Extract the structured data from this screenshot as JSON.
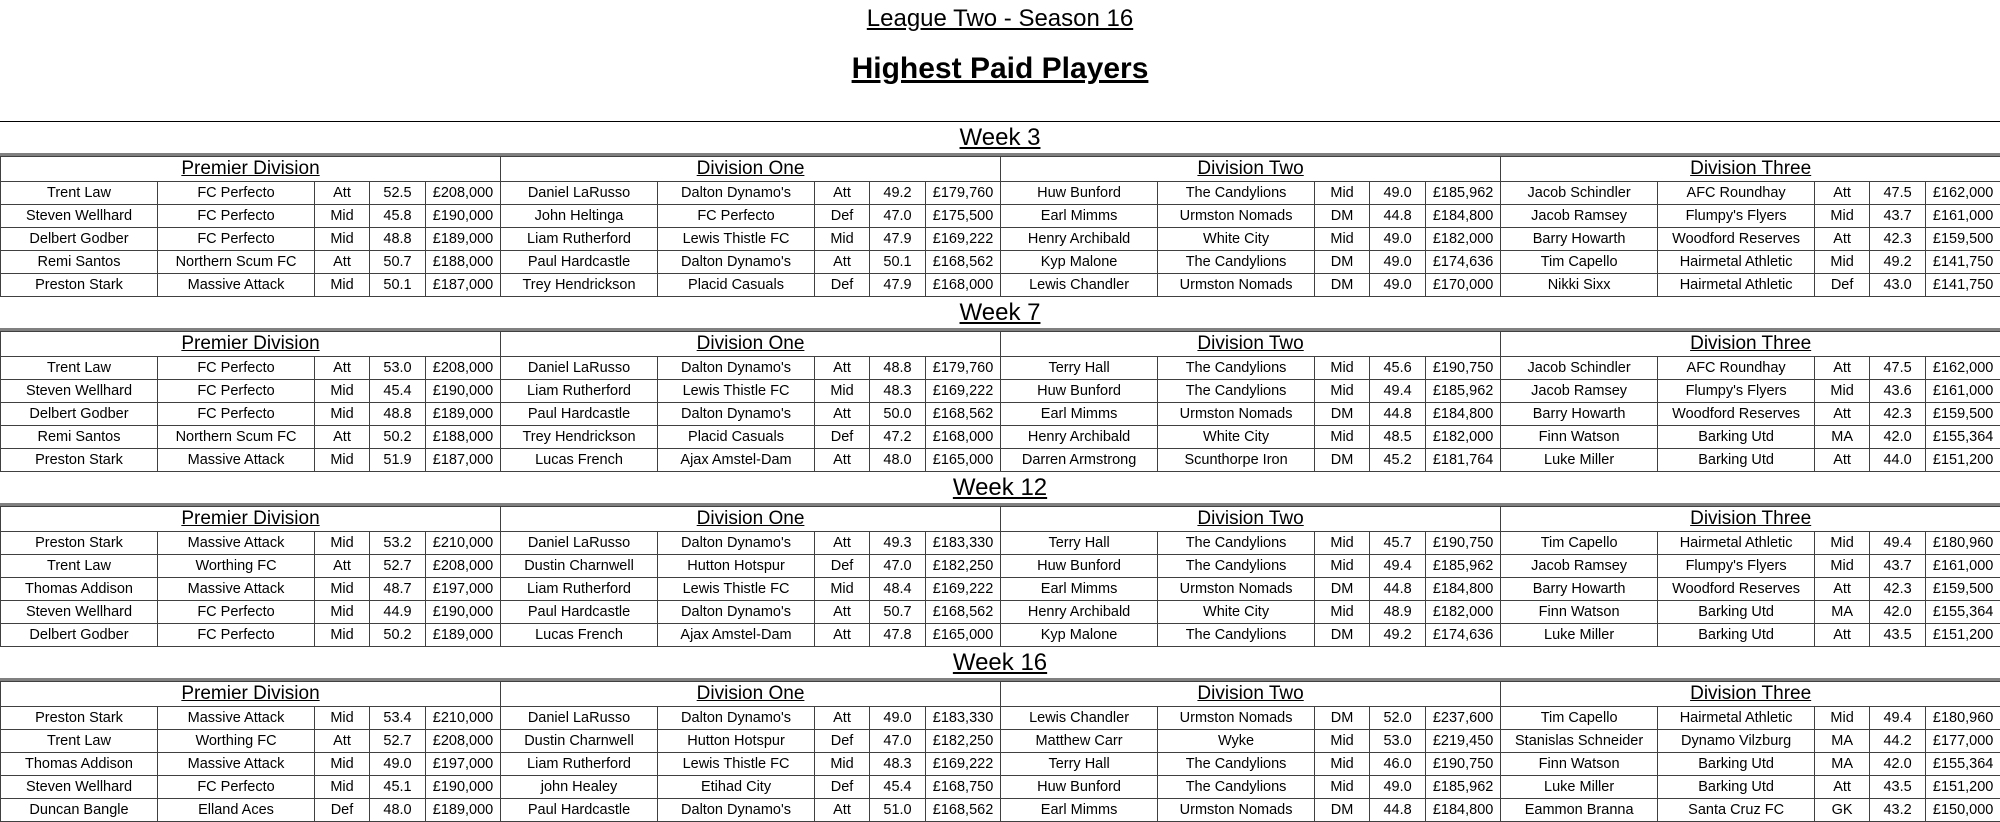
{
  "titles": {
    "league": "League Two - Season 16",
    "page": "Highest Paid Players"
  },
  "colors": {
    "background": "#ffffff",
    "text": "#000000",
    "grid_line": "#404040",
    "week_divider": "#808080"
  },
  "weeks": [
    {
      "label": "Week 3",
      "divisions": [
        {
          "name": "Premier Division",
          "rows": [
            {
              "player": "Trent Law",
              "club": "FC Perfecto",
              "position": "Att",
              "rating": "52.5",
              "wage": "£208,000"
            },
            {
              "player": "Steven Wellhard",
              "club": "FC Perfecto",
              "position": "Mid",
              "rating": "45.8",
              "wage": "£190,000"
            },
            {
              "player": "Delbert Godber",
              "club": "FC Perfecto",
              "position": "Mid",
              "rating": "48.8",
              "wage": "£189,000"
            },
            {
              "player": "Remi Santos",
              "club": "Northern Scum FC",
              "position": "Att",
              "rating": "50.7",
              "wage": "£188,000"
            },
            {
              "player": "Preston Stark",
              "club": "Massive Attack",
              "position": "Mid",
              "rating": "50.1",
              "wage": "£187,000"
            }
          ]
        },
        {
          "name": "Division One",
          "rows": [
            {
              "player": "Daniel LaRusso",
              "club": "Dalton Dynamo's",
              "position": "Att",
              "rating": "49.2",
              "wage": "£179,760"
            },
            {
              "player": "John Heltinga",
              "club": "FC Perfecto",
              "position": "Def",
              "rating": "47.0",
              "wage": "£175,500"
            },
            {
              "player": "Liam Rutherford",
              "club": "Lewis Thistle FC",
              "position": "Mid",
              "rating": "47.9",
              "wage": "£169,222"
            },
            {
              "player": "Paul Hardcastle",
              "club": "Dalton Dynamo's",
              "position": "Att",
              "rating": "50.1",
              "wage": "£168,562"
            },
            {
              "player": "Trey Hendrickson",
              "club": "Placid Casuals",
              "position": "Def",
              "rating": "47.9",
              "wage": "£168,000"
            }
          ]
        },
        {
          "name": "Division Two",
          "rows": [
            {
              "player": "Huw Bunford",
              "club": "The Candylions",
              "position": "Mid",
              "rating": "49.0",
              "wage": "£185,962"
            },
            {
              "player": "Earl Mimms",
              "club": "Urmston Nomads",
              "position": "DM",
              "rating": "44.8",
              "wage": "£184,800"
            },
            {
              "player": "Henry Archibald",
              "club": "White City",
              "position": "Mid",
              "rating": "49.0",
              "wage": "£182,000"
            },
            {
              "player": "Kyp Malone",
              "club": "The Candylions",
              "position": "DM",
              "rating": "49.0",
              "wage": "£174,636"
            },
            {
              "player": "Lewis Chandler",
              "club": "Urmston Nomads",
              "position": "DM",
              "rating": "49.0",
              "wage": "£170,000"
            }
          ]
        },
        {
          "name": "Division Three",
          "rows": [
            {
              "player": "Jacob Schindler",
              "club": "AFC Roundhay",
              "position": "Att",
              "rating": "47.5",
              "wage": "£162,000"
            },
            {
              "player": "Jacob Ramsey",
              "club": "Flumpy's Flyers",
              "position": "Mid",
              "rating": "43.7",
              "wage": "£161,000"
            },
            {
              "player": "Barry Howarth",
              "club": "Woodford Reserves",
              "position": "Att",
              "rating": "42.3",
              "wage": "£159,500"
            },
            {
              "player": "Tim Capello",
              "club": "Hairmetal Athletic",
              "position": "Mid",
              "rating": "49.2",
              "wage": "£141,750"
            },
            {
              "player": "Nikki Sixx",
              "club": "Hairmetal Athletic",
              "position": "Def",
              "rating": "43.0",
              "wage": "£141,750"
            }
          ]
        }
      ]
    },
    {
      "label": "Week 7",
      "divisions": [
        {
          "name": "Premier Division",
          "rows": [
            {
              "player": "Trent Law",
              "club": "FC Perfecto",
              "position": "Att",
              "rating": "53.0",
              "wage": "£208,000"
            },
            {
              "player": "Steven Wellhard",
              "club": "FC Perfecto",
              "position": "Mid",
              "rating": "45.4",
              "wage": "£190,000"
            },
            {
              "player": "Delbert Godber",
              "club": "FC Perfecto",
              "position": "Mid",
              "rating": "48.8",
              "wage": "£189,000"
            },
            {
              "player": "Remi Santos",
              "club": "Northern Scum FC",
              "position": "Att",
              "rating": "50.2",
              "wage": "£188,000"
            },
            {
              "player": "Preston Stark",
              "club": "Massive Attack",
              "position": "Mid",
              "rating": "51.9",
              "wage": "£187,000"
            }
          ]
        },
        {
          "name": "Division One",
          "rows": [
            {
              "player": "Daniel LaRusso",
              "club": "Dalton Dynamo's",
              "position": "Att",
              "rating": "48.8",
              "wage": "£179,760"
            },
            {
              "player": "Liam Rutherford",
              "club": "Lewis Thistle FC",
              "position": "Mid",
              "rating": "48.3",
              "wage": "£169,222"
            },
            {
              "player": "Paul Hardcastle",
              "club": "Dalton Dynamo's",
              "position": "Att",
              "rating": "50.0",
              "wage": "£168,562"
            },
            {
              "player": "Trey Hendrickson",
              "club": "Placid Casuals",
              "position": "Def",
              "rating": "47.2",
              "wage": "£168,000"
            },
            {
              "player": "Lucas French",
              "club": "Ajax Amstel-Dam",
              "position": "Att",
              "rating": "48.0",
              "wage": "£165,000"
            }
          ]
        },
        {
          "name": "Division Two",
          "rows": [
            {
              "player": "Terry Hall",
              "club": "The Candylions",
              "position": "Mid",
              "rating": "45.6",
              "wage": "£190,750"
            },
            {
              "player": "Huw Bunford",
              "club": "The Candylions",
              "position": "Mid",
              "rating": "49.4",
              "wage": "£185,962"
            },
            {
              "player": "Earl Mimms",
              "club": "Urmston Nomads",
              "position": "DM",
              "rating": "44.8",
              "wage": "£184,800"
            },
            {
              "player": "Henry Archibald",
              "club": "White City",
              "position": "Mid",
              "rating": "48.5",
              "wage": "£182,000"
            },
            {
              "player": "Darren Armstrong",
              "club": "Scunthorpe Iron",
              "position": "DM",
              "rating": "45.2",
              "wage": "£181,764"
            }
          ]
        },
        {
          "name": "Division Three",
          "rows": [
            {
              "player": "Jacob Schindler",
              "club": "AFC Roundhay",
              "position": "Att",
              "rating": "47.5",
              "wage": "£162,000"
            },
            {
              "player": "Jacob Ramsey",
              "club": "Flumpy's Flyers",
              "position": "Mid",
              "rating": "43.6",
              "wage": "£161,000"
            },
            {
              "player": "Barry Howarth",
              "club": "Woodford Reserves",
              "position": "Att",
              "rating": "42.3",
              "wage": "£159,500"
            },
            {
              "player": "Finn Watson",
              "club": "Barking Utd",
              "position": "MA",
              "rating": "42.0",
              "wage": "£155,364"
            },
            {
              "player": "Luke Miller",
              "club": "Barking Utd",
              "position": "Att",
              "rating": "44.0",
              "wage": "£151,200"
            }
          ]
        }
      ]
    },
    {
      "label": "Week 12",
      "divisions": [
        {
          "name": "Premier Division",
          "rows": [
            {
              "player": "Preston Stark",
              "club": "Massive Attack",
              "position": "Mid",
              "rating": "53.2",
              "wage": "£210,000"
            },
            {
              "player": "Trent Law",
              "club": "Worthing FC",
              "position": "Att",
              "rating": "52.7",
              "wage": "£208,000"
            },
            {
              "player": "Thomas Addison",
              "club": "Massive Attack",
              "position": "Mid",
              "rating": "48.7",
              "wage": "£197,000"
            },
            {
              "player": "Steven Wellhard",
              "club": "FC Perfecto",
              "position": "Mid",
              "rating": "44.9",
              "wage": "£190,000"
            },
            {
              "player": "Delbert Godber",
              "club": "FC Perfecto",
              "position": "Mid",
              "rating": "50.2",
              "wage": "£189,000"
            }
          ]
        },
        {
          "name": "Division One",
          "rows": [
            {
              "player": "Daniel LaRusso",
              "club": "Dalton Dynamo's",
              "position": "Att",
              "rating": "49.3",
              "wage": "£183,330"
            },
            {
              "player": "Dustin Charnwell",
              "club": "Hutton Hotspur",
              "position": "Def",
              "rating": "47.0",
              "wage": "£182,250"
            },
            {
              "player": "Liam Rutherford",
              "club": "Lewis Thistle FC",
              "position": "Mid",
              "rating": "48.4",
              "wage": "£169,222"
            },
            {
              "player": "Paul Hardcastle",
              "club": "Dalton Dynamo's",
              "position": "Att",
              "rating": "50.7",
              "wage": "£168,562"
            },
            {
              "player": "Lucas French",
              "club": "Ajax Amstel-Dam",
              "position": "Att",
              "rating": "47.8",
              "wage": "£165,000"
            }
          ]
        },
        {
          "name": "Division Two",
          "rows": [
            {
              "player": "Terry Hall",
              "club": "The Candylions",
              "position": "Mid",
              "rating": "45.7",
              "wage": "£190,750"
            },
            {
              "player": "Huw Bunford",
              "club": "The Candylions",
              "position": "Mid",
              "rating": "49.4",
              "wage": "£185,962"
            },
            {
              "player": "Earl Mimms",
              "club": "Urmston Nomads",
              "position": "DM",
              "rating": "44.8",
              "wage": "£184,800"
            },
            {
              "player": "Henry Archibald",
              "club": "White City",
              "position": "Mid",
              "rating": "48.9",
              "wage": "£182,000"
            },
            {
              "player": "Kyp Malone",
              "club": "The Candylions",
              "position": "DM",
              "rating": "49.2",
              "wage": "£174,636"
            }
          ]
        },
        {
          "name": "Division Three",
          "rows": [
            {
              "player": "Tim Capello",
              "club": "Hairmetal Athletic",
              "position": "Mid",
              "rating": "49.4",
              "wage": "£180,960"
            },
            {
              "player": "Jacob Ramsey",
              "club": "Flumpy's Flyers",
              "position": "Mid",
              "rating": "43.7",
              "wage": "£161,000"
            },
            {
              "player": "Barry Howarth",
              "club": "Woodford Reserves",
              "position": "Att",
              "rating": "42.3",
              "wage": "£159,500"
            },
            {
              "player": "Finn Watson",
              "club": "Barking Utd",
              "position": "MA",
              "rating": "42.0",
              "wage": "£155,364"
            },
            {
              "player": "Luke Miller",
              "club": "Barking Utd",
              "position": "Att",
              "rating": "43.5",
              "wage": "£151,200"
            }
          ]
        }
      ]
    },
    {
      "label": "Week 16",
      "divisions": [
        {
          "name": "Premier Division",
          "rows": [
            {
              "player": "Preston Stark",
              "club": "Massive Attack",
              "position": "Mid",
              "rating": "53.4",
              "wage": "£210,000"
            },
            {
              "player": "Trent Law",
              "club": "Worthing FC",
              "position": "Att",
              "rating": "52.7",
              "wage": "£208,000"
            },
            {
              "player": "Thomas Addison",
              "club": "Massive Attack",
              "position": "Mid",
              "rating": "49.0",
              "wage": "£197,000"
            },
            {
              "player": "Steven Wellhard",
              "club": "FC Perfecto",
              "position": "Mid",
              "rating": "45.1",
              "wage": "£190,000"
            },
            {
              "player": "Duncan Bangle",
              "club": "Elland Aces",
              "position": "Def",
              "rating": "48.0",
              "wage": "£189,000"
            }
          ]
        },
        {
          "name": "Division One",
          "rows": [
            {
              "player": "Daniel LaRusso",
              "club": "Dalton Dynamo's",
              "position": "Att",
              "rating": "49.0",
              "wage": "£183,330"
            },
            {
              "player": "Dustin Charnwell",
              "club": "Hutton Hotspur",
              "position": "Def",
              "rating": "47.0",
              "wage": "£182,250"
            },
            {
              "player": "Liam Rutherford",
              "club": "Lewis Thistle FC",
              "position": "Mid",
              "rating": "48.3",
              "wage": "£169,222"
            },
            {
              "player": "john Healey",
              "club": "Etihad City",
              "position": "Def",
              "rating": "45.4",
              "wage": "£168,750"
            },
            {
              "player": "Paul Hardcastle",
              "club": "Dalton Dynamo's",
              "position": "Att",
              "rating": "51.0",
              "wage": "£168,562"
            }
          ]
        },
        {
          "name": "Division Two",
          "rows": [
            {
              "player": "Lewis Chandler",
              "club": "Urmston Nomads",
              "position": "DM",
              "rating": "52.0",
              "wage": "£237,600"
            },
            {
              "player": "Matthew Carr",
              "club": "Wyke",
              "position": "Mid",
              "rating": "53.0",
              "wage": "£219,450"
            },
            {
              "player": "Terry Hall",
              "club": "The Candylions",
              "position": "Mid",
              "rating": "46.0",
              "wage": "£190,750"
            },
            {
              "player": "Huw Bunford",
              "club": "The Candylions",
              "position": "Mid",
              "rating": "49.0",
              "wage": "£185,962"
            },
            {
              "player": "Earl Mimms",
              "club": "Urmston Nomads",
              "position": "DM",
              "rating": "44.8",
              "wage": "£184,800"
            }
          ]
        },
        {
          "name": "Division Three",
          "rows": [
            {
              "player": "Tim Capello",
              "club": "Hairmetal Athletic",
              "position": "Mid",
              "rating": "49.4",
              "wage": "£180,960"
            },
            {
              "player": "Stanislas Schneider",
              "club": "Dynamo Vilzburg",
              "position": "MA",
              "rating": "44.2",
              "wage": "£177,000"
            },
            {
              "player": "Finn Watson",
              "club": "Barking Utd",
              "position": "MA",
              "rating": "42.0",
              "wage": "£155,364"
            },
            {
              "player": "Luke Miller",
              "club": "Barking Utd",
              "position": "Att",
              "rating": "43.5",
              "wage": "£151,200"
            },
            {
              "player": "Eammon Branna",
              "club": "Santa Cruz FC",
              "position": "GK",
              "rating": "43.2",
              "wage": "£150,000"
            }
          ]
        }
      ]
    }
  ]
}
